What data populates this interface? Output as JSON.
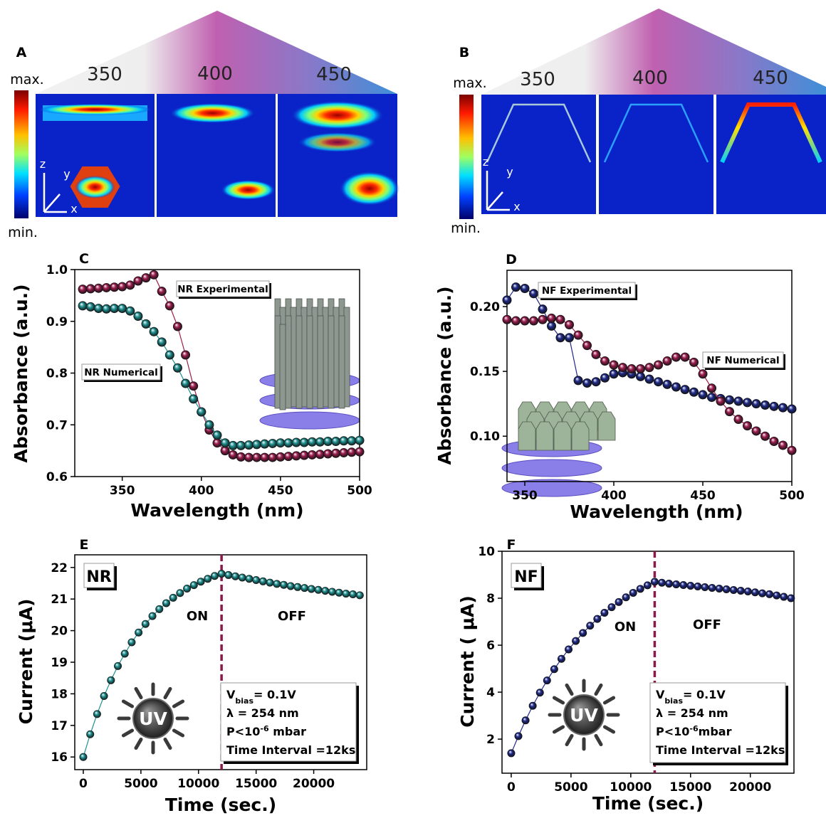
{
  "field_panels": [
    {
      "label": "A",
      "colorbar_max": "max.",
      "colorbar_min": "min.",
      "wavelengths": [
        "350",
        "400",
        "450"
      ],
      "axes": [
        "z",
        "y",
        "x"
      ]
    },
    {
      "label": "B",
      "colorbar_max": "max.",
      "colorbar_min": "min.",
      "wavelengths": [
        "350",
        "400",
        "450"
      ],
      "axes": [
        "z",
        "y",
        "x"
      ]
    }
  ],
  "chart_data": [
    {
      "type": "line",
      "panel_label": "C",
      "x_label": "Wavelength (nm)",
      "y_label": "Absorbance (a.u.)",
      "x": [
        325,
        330,
        335,
        340,
        345,
        350,
        355,
        360,
        365,
        370,
        375,
        380,
        385,
        390,
        395,
        400,
        405,
        410,
        415,
        420,
        425,
        430,
        435,
        440,
        445,
        450,
        455,
        460,
        465,
        470,
        475,
        480,
        485,
        490,
        495,
        500
      ],
      "series": [
        {
          "name": "NR Experimental",
          "color": "#9b1d4f",
          "values": [
            0.962,
            0.963,
            0.964,
            0.965,
            0.966,
            0.967,
            0.97,
            0.978,
            0.984,
            0.99,
            0.958,
            0.93,
            0.89,
            0.835,
            0.775,
            0.725,
            0.69,
            0.665,
            0.65,
            0.642,
            0.638,
            0.637,
            0.637,
            0.637,
            0.637,
            0.638,
            0.639,
            0.64,
            0.641,
            0.642,
            0.643,
            0.644,
            0.645,
            0.646,
            0.647,
            0.648
          ]
        },
        {
          "name": "NR Numerical",
          "color": "#1f9090",
          "values": [
            0.93,
            0.928,
            0.925,
            0.924,
            0.925,
            0.925,
            0.92,
            0.91,
            0.895,
            0.88,
            0.86,
            0.835,
            0.81,
            0.78,
            0.75,
            0.725,
            0.7,
            0.68,
            0.665,
            0.66,
            0.66,
            0.661,
            0.662,
            0.663,
            0.664,
            0.665,
            0.665,
            0.666,
            0.666,
            0.667,
            0.667,
            0.668,
            0.668,
            0.669,
            0.669,
            0.67
          ]
        }
      ],
      "xlim": [
        320,
        500
      ],
      "ylim": [
        0.6,
        1.0
      ],
      "xticks": [
        350,
        400,
        450,
        500
      ],
      "yticks": [
        0.6,
        0.7,
        0.8,
        0.9,
        {
          "value": 1,
          "label": "1.0"
        }
      ]
    },
    {
      "type": "line",
      "panel_label": "D",
      "x_label": "Wavelength (nm)",
      "y_label": "Absorbance (a.u.)",
      "x": [
        340,
        345,
        350,
        355,
        360,
        365,
        370,
        375,
        380,
        385,
        390,
        395,
        400,
        405,
        410,
        415,
        420,
        425,
        430,
        435,
        440,
        445,
        450,
        455,
        460,
        465,
        470,
        475,
        480,
        485,
        490,
        495,
        500
      ],
      "series": [
        {
          "name": "NF Experimental",
          "color": "#1f2a8a",
          "values": [
            0.205,
            0.215,
            0.214,
            0.21,
            0.198,
            0.185,
            0.176,
            0.176,
            0.143,
            0.141,
            0.142,
            0.145,
            0.148,
            0.149,
            0.148,
            0.146,
            0.144,
            0.142,
            0.14,
            0.138,
            0.136,
            0.134,
            0.132,
            0.13,
            0.129,
            0.128,
            0.127,
            0.126,
            0.125,
            0.124,
            0.123,
            0.122,
            0.121
          ]
        },
        {
          "name": "NF Numerical",
          "color": "#9b1d4f",
          "values": [
            0.19,
            0.189,
            0.189,
            0.189,
            0.19,
            0.191,
            0.19,
            0.186,
            0.178,
            0.17,
            0.163,
            0.158,
            0.155,
            0.153,
            0.152,
            0.152,
            0.153,
            0.155,
            0.158,
            0.161,
            0.161,
            0.157,
            0.148,
            0.137,
            0.127,
            0.119,
            0.113,
            0.108,
            0.104,
            0.1,
            0.096,
            0.093,
            0.089
          ]
        }
      ],
      "xlim": [
        340,
        500
      ],
      "ylim": [
        0.065,
        0.228
      ],
      "xticks": [
        350,
        400,
        450,
        500
      ],
      "yticks": [
        {
          "value": 0.1,
          "label": "0.10"
        },
        0.15,
        {
          "value": 0.2,
          "label": "0.20"
        }
      ]
    },
    {
      "type": "line",
      "panel_label": "E",
      "badge": "NR",
      "x_label": "Time (sec.)",
      "y_label": "Current (μA)",
      "color": "#1f9090",
      "x": [
        0,
        600,
        1200,
        1800,
        2400,
        3000,
        3600,
        4200,
        4800,
        5400,
        6000,
        6600,
        7200,
        7800,
        8400,
        9000,
        9600,
        10200,
        10800,
        11400,
        12000,
        12600,
        13200,
        13800,
        14400,
        15000,
        15600,
        16200,
        16800,
        17400,
        18000,
        18600,
        19200,
        19800,
        20400,
        21000,
        21600,
        22200,
        22800,
        23400,
        24000
      ],
      "values": [
        16,
        16.72,
        17.36,
        17.93,
        18.43,
        18.88,
        19.27,
        19.63,
        19.94,
        20.21,
        20.46,
        20.68,
        20.87,
        21.04,
        21.19,
        21.33,
        21.44,
        21.55,
        21.64,
        21.73,
        21.8,
        21.76,
        21.72,
        21.68,
        21.64,
        21.6,
        21.56,
        21.52,
        21.48,
        21.45,
        21.41,
        21.38,
        21.35,
        21.32,
        21.29,
        21.26,
        21.23,
        21.2,
        21.17,
        21.15,
        21.12
      ],
      "xlim": [
        -740,
        24600
      ],
      "ylim": [
        15.6,
        22.4
      ],
      "xticks": [
        0,
        5000,
        10000,
        15000,
        20000
      ],
      "yticks": [
        16,
        17,
        18,
        19,
        20,
        21,
        22
      ],
      "vline": 12000,
      "annotations": [
        "ON",
        "OFF"
      ],
      "icon_text": "UV",
      "info": [
        [
          {
            "text": "V"
          },
          {
            "sub": "bias"
          },
          {
            "text": "= 0.1V"
          }
        ],
        [
          {
            "text": "λ = 254 nm"
          }
        ],
        [
          {
            "text": "P<10"
          },
          {
            "sup": "-6"
          },
          {
            "text": " mbar"
          }
        ],
        [
          {
            "text": "Time Interval =12ks"
          }
        ]
      ]
    },
    {
      "type": "line",
      "panel_label": "F",
      "badge": "NF",
      "x_label": "Time (sec.)",
      "y_label": "Current ( μA)",
      "color": "#1f2a8a",
      "x": [
        0,
        600,
        1200,
        1800,
        2400,
        3000,
        3600,
        4200,
        4800,
        5400,
        6000,
        6600,
        7200,
        7800,
        8400,
        9000,
        9600,
        10200,
        10800,
        11400,
        12000,
        12600,
        13200,
        13800,
        14400,
        15000,
        15600,
        16200,
        16800,
        17400,
        18000,
        18600,
        19200,
        19800,
        20400,
        21000,
        21600,
        22200,
        22800,
        23400
      ],
      "values": [
        1.4,
        2.13,
        2.8,
        3.42,
        3.98,
        4.5,
        4.98,
        5.42,
        5.82,
        6.18,
        6.52,
        6.83,
        7.12,
        7.38,
        7.62,
        7.84,
        8.04,
        8.23,
        8.4,
        8.55,
        8.7,
        8.66,
        8.62,
        8.59,
        8.56,
        8.53,
        8.5,
        8.47,
        8.44,
        8.41,
        8.38,
        8.35,
        8.32,
        8.29,
        8.25,
        8.21,
        8.17,
        8.12,
        8.06,
        8
      ],
      "xlim": [
        -770,
        23650
      ],
      "ylim": [
        0.55,
        10
      ],
      "xticks": [
        0,
        5000,
        10000,
        15000,
        20000
      ],
      "yticks": [
        2,
        4,
        6,
        8,
        10
      ],
      "vline": 12000,
      "annotations": [
        "ON",
        "OFF"
      ],
      "icon_text": "UV",
      "info": [
        [
          {
            "text": "V"
          },
          {
            "sub": "bias"
          },
          {
            "text": "= 0.1V"
          }
        ],
        [
          {
            "text": "λ = 254 nm"
          }
        ],
        [
          {
            "text": "P<10"
          },
          {
            "sup": "-6"
          },
          {
            "text": "mbar"
          }
        ],
        [
          {
            "text": "Time Interval =12ks"
          }
        ]
      ]
    }
  ]
}
